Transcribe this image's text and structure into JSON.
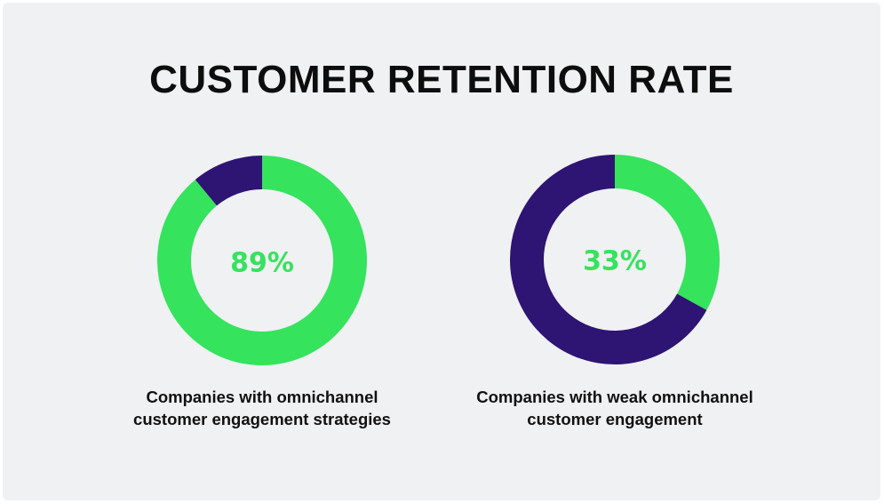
{
  "chart_data": {
    "type": "pie",
    "title": "CUSTOMER RETENTION RATE",
    "charts": [
      {
        "label_lines": [
          "Companies with omnichannel",
          "customer engagement strategies"
        ],
        "value": 89,
        "value_label": "89%",
        "remainder": 11
      },
      {
        "label_lines": [
          "Companies with weak omnichannel",
          "customer engagement"
        ],
        "value": 33,
        "value_label": "33%",
        "remainder": 67
      }
    ]
  },
  "colors": {
    "value": "#35e35d",
    "remainder": "#2e1473",
    "text": "#0d0d0d",
    "background": "#f0f1f3"
  }
}
